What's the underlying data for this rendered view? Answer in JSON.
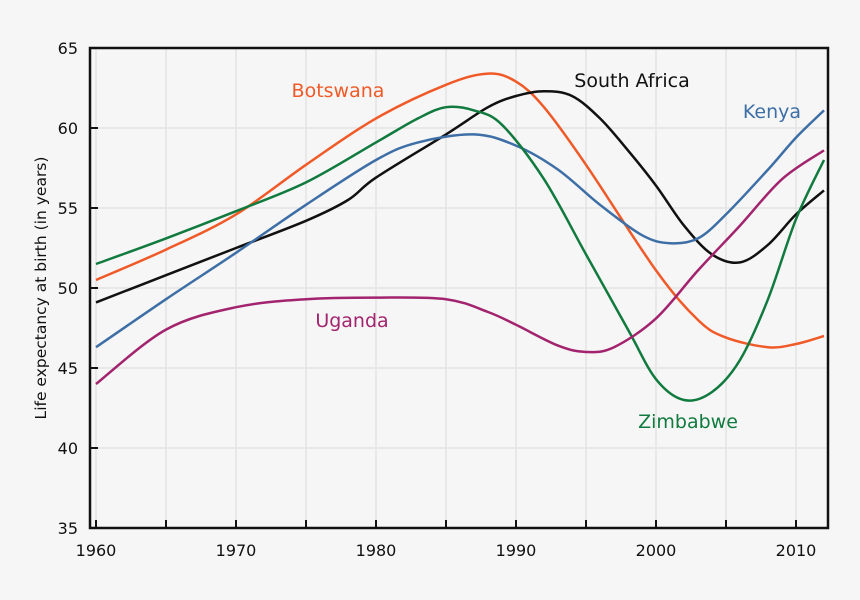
{
  "chart_data": {
    "type": "line",
    "title": "",
    "xlabel": "",
    "ylabel": "Life expectancy at birth (in years)",
    "xlim": [
      1959.6,
      2012.4
    ],
    "ylim": [
      35,
      65
    ],
    "xticks": [
      1960,
      1970,
      1980,
      1990,
      2000,
      2010
    ],
    "yticks": [
      35,
      40,
      45,
      50,
      55,
      60,
      65
    ],
    "grid": true,
    "legend": "inline labels",
    "series": [
      {
        "name": "Botswana",
        "color": "#f05a28",
        "x": [
          1960,
          1965,
          1970,
          1975,
          1980,
          1985,
          1988,
          1990,
          1992,
          1995,
          2000,
          2003,
          2005,
          2008,
          2010,
          2012
        ],
        "y": [
          50.5,
          52.4,
          54.6,
          57.7,
          60.6,
          62.7,
          63.4,
          62.9,
          61.3,
          57.7,
          51.1,
          48.0,
          46.9,
          46.3,
          46.5,
          47.0
        ]
      },
      {
        "name": "South Africa",
        "color": "#111111",
        "x": [
          1960,
          1965,
          1970,
          1975,
          1978,
          1980,
          1985,
          1988,
          1990,
          1992,
          1994,
          1996,
          1998,
          2000,
          2002,
          2004,
          2006,
          2008,
          2010,
          2012
        ],
        "y": [
          49.1,
          50.8,
          52.5,
          54.2,
          55.5,
          56.9,
          59.6,
          61.3,
          62.0,
          62.3,
          62.0,
          60.6,
          58.6,
          56.4,
          53.9,
          52.1,
          51.6,
          52.7,
          54.6,
          56.1
        ]
      },
      {
        "name": "Kenya",
        "color": "#3d6fa6",
        "x": [
          1960,
          1965,
          1970,
          1975,
          1980,
          1983,
          1987,
          1990,
          1993,
          1996,
          1999,
          2001,
          2003,
          2005,
          2008,
          2010,
          2012
        ],
        "y": [
          46.3,
          49.3,
          52.2,
          55.2,
          58.0,
          59.1,
          59.6,
          58.9,
          57.4,
          55.2,
          53.3,
          52.8,
          53.1,
          54.6,
          57.4,
          59.4,
          61.1
        ]
      },
      {
        "name": "Zimbabwe",
        "color": "#117a3e",
        "x": [
          1960,
          1965,
          1970,
          1975,
          1980,
          1983,
          1985,
          1987,
          1989,
          1992,
          1995,
          1998,
          2000,
          2002,
          2004,
          2006,
          2008,
          2010,
          2012
        ],
        "y": [
          51.5,
          53.1,
          54.8,
          56.6,
          59.1,
          60.6,
          61.3,
          61.1,
          60.2,
          56.8,
          52.1,
          47.4,
          44.3,
          43.0,
          43.5,
          45.5,
          49.3,
          54.3,
          58.0
        ]
      },
      {
        "name": "Uganda",
        "color": "#a3246e",
        "x": [
          1960,
          1965,
          1970,
          1975,
          1980,
          1985,
          1988,
          1990,
          1993,
          1995,
          1997,
          2000,
          2003,
          2006,
          2009,
          2012
        ],
        "y": [
          44.0,
          47.4,
          48.8,
          49.3,
          49.4,
          49.3,
          48.5,
          47.7,
          46.4,
          46.0,
          46.3,
          48.1,
          51.1,
          53.9,
          56.8,
          58.6
        ]
      }
    ],
    "annotations": [
      "Botswana",
      "South Africa",
      "Kenya",
      "Zimbabwe",
      "Uganda"
    ]
  }
}
